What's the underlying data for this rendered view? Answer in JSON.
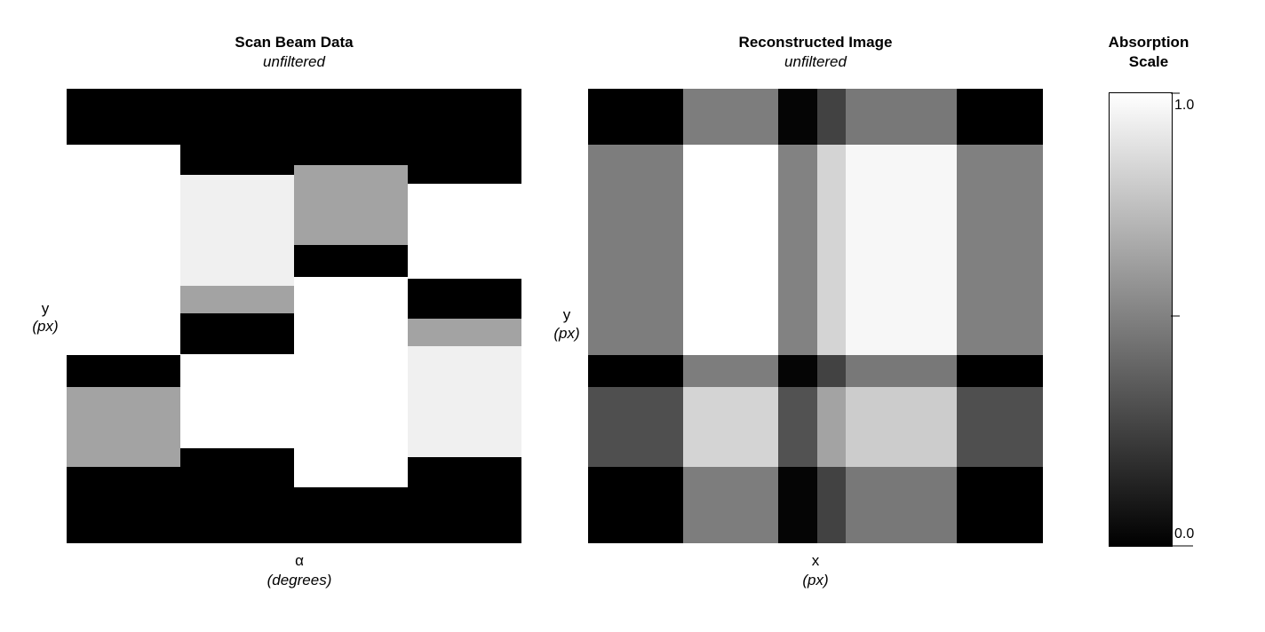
{
  "chart_data": [
    {
      "type": "heatmap",
      "title": "Scan Beam Data",
      "subtitle": "unfiltered",
      "xlabel": "α",
      "xunit": "(degrees)",
      "ylabel": "y",
      "yunit": "(px)",
      "colormap": "grayscale",
      "value_range": [
        0,
        1
      ],
      "columns": [
        {
          "segments": [
            {
              "y0": 0,
              "y1": 0.123,
              "value": 0.0
            },
            {
              "y0": 0.123,
              "y1": 0.586,
              "value": 1.0
            },
            {
              "y0": 0.586,
              "y1": 0.656,
              "value": 0.0
            },
            {
              "y0": 0.656,
              "y1": 0.832,
              "value": 0.64
            },
            {
              "y0": 0.832,
              "y1": 1.0,
              "value": 0.0
            }
          ]
        },
        {
          "segments": [
            {
              "y0": 0,
              "y1": 0.189,
              "value": 0.0
            },
            {
              "y0": 0.189,
              "y1": 0.434,
              "value": 0.94
            },
            {
              "y0": 0.434,
              "y1": 0.494,
              "value": 0.64
            },
            {
              "y0": 0.494,
              "y1": 0.584,
              "value": 0.0
            },
            {
              "y0": 0.584,
              "y1": 0.791,
              "value": 1.0
            },
            {
              "y0": 0.791,
              "y1": 1.0,
              "value": 0.0
            }
          ]
        },
        {
          "segments": [
            {
              "y0": 0,
              "y1": 0.168,
              "value": 0.0
            },
            {
              "y0": 0.168,
              "y1": 0.344,
              "value": 0.64
            },
            {
              "y0": 0.344,
              "y1": 0.414,
              "value": 0.0
            },
            {
              "y0": 0.414,
              "y1": 0.877,
              "value": 1.0
            },
            {
              "y0": 0.877,
              "y1": 1.0,
              "value": 0.0
            }
          ]
        },
        {
          "segments": [
            {
              "y0": 0,
              "y1": 0.209,
              "value": 0.0
            },
            {
              "y0": 0.209,
              "y1": 0.418,
              "value": 1.0
            },
            {
              "y0": 0.418,
              "y1": 0.506,
              "value": 0.0
            },
            {
              "y0": 0.506,
              "y1": 0.566,
              "value": 0.64
            },
            {
              "y0": 0.566,
              "y1": 0.811,
              "value": 0.94
            },
            {
              "y0": 0.811,
              "y1": 1.0,
              "value": 0.0
            }
          ]
        }
      ]
    },
    {
      "type": "heatmap",
      "title": "Reconstructed Image",
      "subtitle": "unfiltered",
      "xlabel": "x",
      "xunit": "(px)",
      "ylabel": "y",
      "yunit": "(px)",
      "colormap": "grayscale",
      "value_range": [
        0,
        1
      ],
      "col_edges": [
        0,
        0.209,
        0.418,
        0.504,
        0.566,
        0.811,
        1.0
      ],
      "row_edges": [
        0,
        0.123,
        0.586,
        0.656,
        0.832,
        1.0
      ],
      "cells": [
        [
          0.0,
          0.49,
          0.02,
          0.26,
          0.47,
          0.0
        ],
        [
          0.49,
          1.0,
          0.51,
          0.83,
          0.97,
          0.5
        ],
        [
          0.0,
          0.49,
          0.02,
          0.26,
          0.47,
          0.0
        ],
        [
          0.31,
          0.83,
          0.32,
          0.64,
          0.8,
          0.31
        ],
        [
          0.0,
          0.49,
          0.02,
          0.26,
          0.47,
          0.0
        ]
      ]
    },
    {
      "type": "colorbar",
      "title_line1": "Absorption",
      "title_line2": "Scale",
      "range": [
        0,
        1
      ],
      "tick_labels": {
        "max": "1.0",
        "min": "0.0"
      },
      "ticks": [
        0,
        0.5,
        1
      ]
    }
  ]
}
